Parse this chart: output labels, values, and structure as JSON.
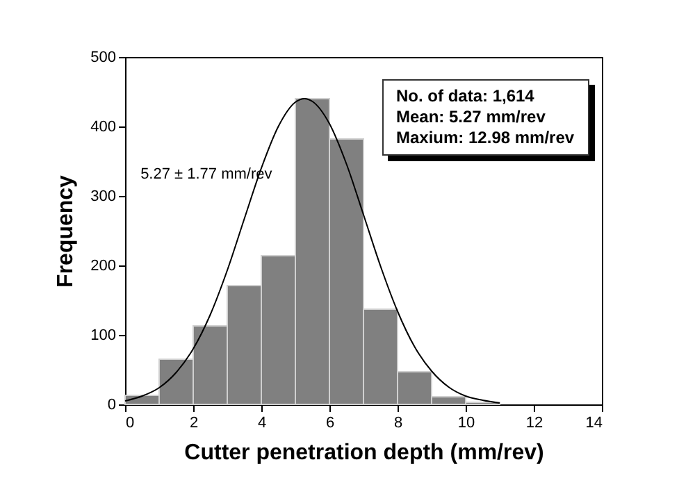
{
  "chart_data": {
    "type": "histogram",
    "xlabel": "Cutter penetration depth (mm/rev)",
    "ylabel": "Frequency",
    "bins": [
      0,
      1,
      2,
      3,
      4,
      5,
      6,
      7,
      8,
      9,
      10,
      11
    ],
    "values": [
      13,
      65,
      113,
      171,
      214,
      440,
      382,
      137,
      47,
      11,
      3
    ],
    "color": "#808080",
    "series": [
      {
        "type": "line",
        "name": "5.27 ± 1.77 mm/rev",
        "color": "#000000",
        "x": [
          0,
          0.5,
          1,
          1.5,
          2,
          2.5,
          3,
          3.5,
          4,
          4.5,
          5,
          5.27,
          5.5,
          6,
          6.5,
          7,
          7.5,
          8,
          8.5,
          9,
          9.5,
          10,
          10.5,
          11
        ],
        "values": [
          5,
          12,
          24,
          46,
          80,
          129,
          193,
          267,
          340,
          400,
          435,
          440,
          436,
          404,
          346,
          273,
          199,
          134,
          83,
          48,
          25,
          12,
          6,
          2
        ]
      }
    ],
    "annotations": [
      "No. of data: 1,614",
      "Mean: 5.27 mm/rev",
      "Maxium: 12.98 mm/rev"
    ],
    "xlim": [
      0,
      14
    ],
    "xticks": [
      0,
      2,
      4,
      6,
      8,
      10,
      12,
      14
    ],
    "ylim": [
      0,
      500
    ],
    "yticks": [
      0,
      100,
      200,
      300,
      400,
      500
    ],
    "grid": false
  }
}
